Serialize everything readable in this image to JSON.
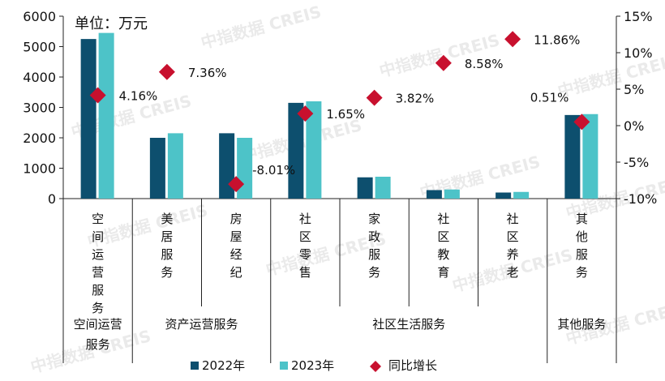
{
  "chart_data": {
    "type": "bar",
    "title": "",
    "unit_label": "单位：万元",
    "categories": [
      "空间运营服务",
      "美居服务",
      "房屋经纪",
      "社区零售",
      "家政服务",
      "社区教育",
      "社区养老",
      "其他服务"
    ],
    "groups": [
      {
        "label": "空间运营服务",
        "from": 0,
        "to": 0
      },
      {
        "label": "资产运营服务",
        "from": 1,
        "to": 2
      },
      {
        "label": "社区生活服务",
        "from": 3,
        "to": 6
      },
      {
        "label": "其他服务",
        "from": 7,
        "to": 7
      }
    ],
    "series": [
      {
        "name": "2022年",
        "color": "#0d4f6e",
        "values": [
          5250,
          2000,
          2150,
          3150,
          700,
          280,
          200,
          2750
        ]
      },
      {
        "name": "2023年",
        "color": "#4dc3c8",
        "values": [
          5450,
          2150,
          2000,
          3200,
          720,
          300,
          220,
          2780
        ]
      }
    ],
    "growth": {
      "name": "同比增长",
      "color": "#c8102e",
      "values": [
        4.16,
        7.36,
        -8.01,
        1.65,
        3.82,
        8.58,
        11.86,
        0.51
      ],
      "labels": [
        "4.16%",
        "7.36%",
        "-8.01%",
        "1.65%",
        "3.82%",
        "8.58%",
        "11.86%",
        "0.51%"
      ]
    },
    "y_left": {
      "min": 0,
      "max": 6000,
      "step": 1000,
      "ticks": [
        "0",
        "1000",
        "2000",
        "3000",
        "4000",
        "5000",
        "6000"
      ]
    },
    "y_right": {
      "min": -10,
      "max": 15,
      "step": 5,
      "ticks": [
        "-10%",
        "-5%",
        "0%",
        "5%",
        "10%",
        "15%"
      ]
    },
    "legend": [
      "2022年",
      "2023年",
      "同比增长"
    ],
    "legend_position": "bottom",
    "watermark": "中指数据 CREIS"
  }
}
